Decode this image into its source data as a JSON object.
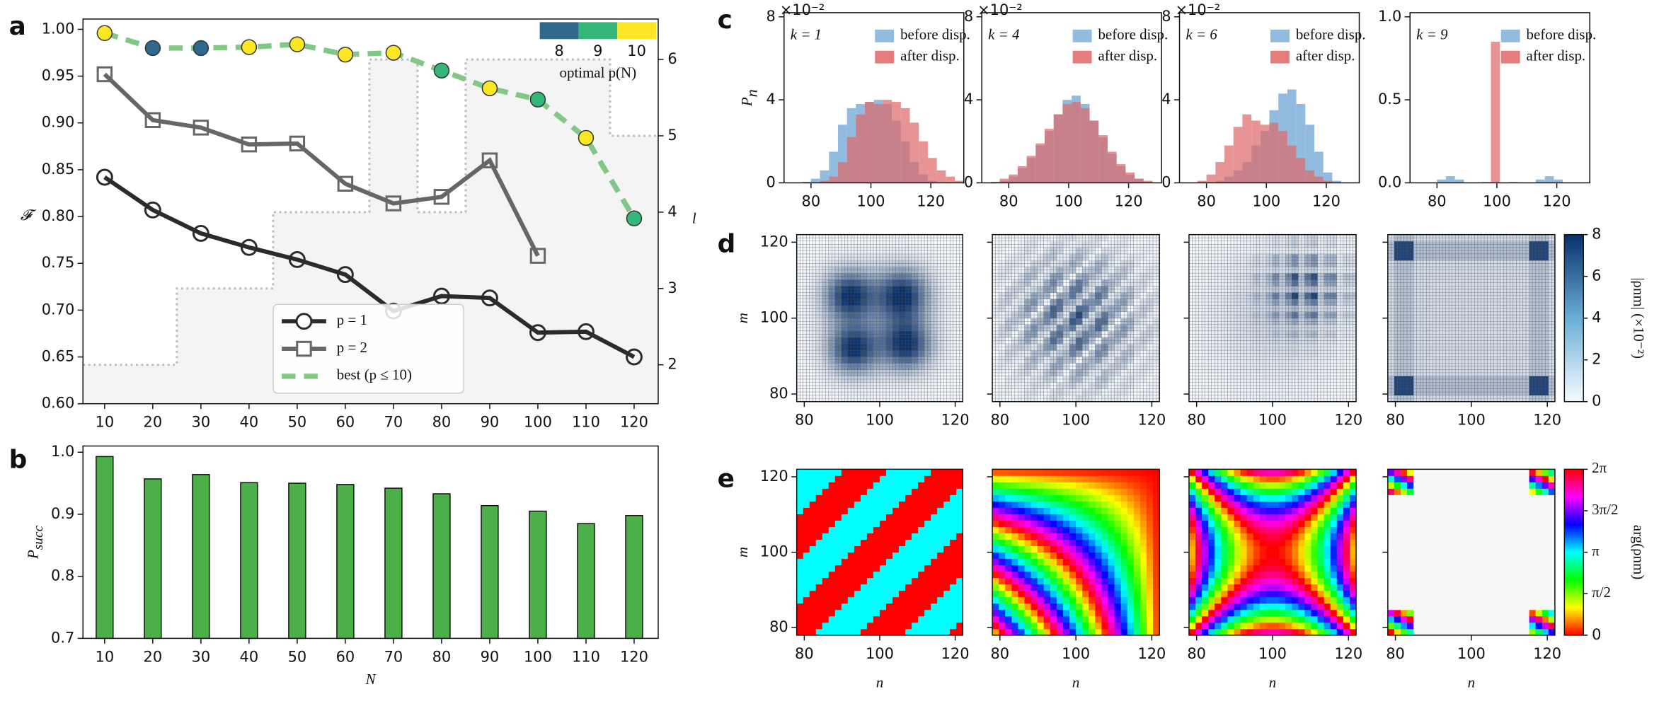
{
  "chart_data": [
    {
      "type": "line",
      "panel": "a",
      "x": [
        10,
        20,
        30,
        40,
        50,
        60,
        70,
        80,
        90,
        100,
        110,
        120
      ],
      "xlim": [
        5.5,
        125
      ],
      "xticks": [
        10,
        20,
        30,
        40,
        50,
        60,
        70,
        80,
        90,
        100,
        110,
        120
      ],
      "ylim": [
        0.6,
        1.011
      ],
      "yticks": [
        {
          "value": 0.6,
          "label": "0.60"
        },
        0.65,
        {
          "value": 0.7,
          "label": "0.70"
        },
        0.75,
        {
          "value": 0.8,
          "label": "0.80"
        },
        0.85,
        {
          "value": 0.9,
          "label": "0.90"
        },
        0.95,
        {
          "value": 1,
          "label": "1.00"
        }
      ],
      "ylabel": "𝓕",
      "y2label": "l",
      "y2lim": [
        1.49,
        6.53
      ],
      "y2ticks": [
        2,
        3,
        4,
        5,
        6
      ],
      "l_values": [
        2,
        2,
        3,
        3,
        4,
        4,
        6,
        4,
        6,
        6,
        6,
        5
      ],
      "series": [
        {
          "name": "p = 1",
          "color": "#2b2b2b",
          "marker": "circle",
          "values": [
            0.842,
            0.807,
            0.782,
            0.767,
            0.754,
            0.738,
            0.699,
            0.715,
            0.713,
            0.676,
            0.677,
            0.65
          ]
        },
        {
          "name": "p = 2",
          "color": "#666666",
          "marker": "square",
          "values": [
            0.952,
            0.903,
            0.895,
            0.877,
            0.878,
            0.835,
            0.814,
            0.821,
            0.86,
            0.758,
            null,
            null
          ]
        },
        {
          "name": "best (p ≤ 10)",
          "color": "#82c785",
          "marker": "circle",
          "dashed": true,
          "values": [
            0.996,
            0.98,
            0.98,
            0.981,
            0.984,
            0.973,
            0.975,
            0.956,
            0.937,
            0.925,
            0.884,
            0.798
          ],
          "optimal_p": [
            10,
            8,
            8,
            10,
            10,
            10,
            10,
            9,
            10,
            9,
            10,
            9
          ]
        }
      ],
      "colorbar": {
        "label": "optimal p(N)",
        "ticks": [
          8,
          9,
          10
        ],
        "colors": [
          "#31688e",
          "#35b779",
          "#fde725"
        ]
      },
      "legend": "lower center"
    },
    {
      "type": "bar",
      "panel": "b",
      "x": [
        10,
        20,
        30,
        40,
        50,
        60,
        70,
        80,
        90,
        100,
        110,
        120
      ],
      "values": [
        0.993,
        0.957,
        0.964,
        0.951,
        0.95,
        0.948,
        0.942,
        0.933,
        0.914,
        0.905,
        0.885,
        0.898
      ],
      "xlim": [
        5.5,
        125
      ],
      "xticks": [
        10,
        20,
        30,
        40,
        50,
        60,
        70,
        80,
        90,
        100,
        110,
        120
      ],
      "ylim": [
        0.7,
        1.01
      ],
      "yticks": [
        0.7,
        0.8,
        0.9,
        {
          "value": 1,
          "label": "1.0"
        }
      ],
      "xlabel": "N",
      "ylabel": "P",
      "ylabel_sub": "succ",
      "color": "#4daf4a"
    },
    {
      "type": "histogram",
      "panel": "c",
      "annotation": "k = 1",
      "ylabel": "P",
      "ylabel_sub": "n",
      "offset_label": "×10⁻²",
      "bins": [
        71,
        74,
        77,
        80,
        83,
        86,
        89,
        92,
        95,
        98,
        101,
        104,
        107,
        110,
        113,
        116,
        119,
        122,
        125,
        128,
        131
      ],
      "xlim": [
        71,
        131
      ],
      "xticks": [
        80,
        100,
        120
      ],
      "ylim": [
        0,
        8.2
      ],
      "yticks": [
        0,
        4,
        8
      ],
      "series": [
        {
          "name": "before disp.",
          "color": "#7fb0d9",
          "values": [
            0,
            0,
            0.05,
            0.2,
            0.6,
            1.5,
            2.8,
            3.6,
            3.8,
            3.9,
            4.0,
            3.8,
            3.0,
            2.0,
            1.0,
            0.4,
            0.1,
            0,
            0,
            0
          ]
        },
        {
          "name": "after disp.",
          "color": "#e06666",
          "values": [
            0,
            0,
            0,
            0,
            0.1,
            0.3,
            1.0,
            2.2,
            3.3,
            3.9,
            3.8,
            4.0,
            3.9,
            3.6,
            2.9,
            2.0,
            1.2,
            0.6,
            0.3,
            0.1
          ]
        }
      ]
    },
    {
      "type": "histogram",
      "annotation": "k = 4",
      "offset_label": "×10⁻²",
      "bins": [
        71,
        74,
        77,
        80,
        83,
        86,
        89,
        92,
        95,
        98,
        101,
        104,
        107,
        110,
        113,
        116,
        119,
        122,
        125,
        128,
        131
      ],
      "xlim": [
        71,
        131
      ],
      "xticks": [
        80,
        100,
        120
      ],
      "ylim": [
        0,
        8.2
      ],
      "yticks": [
        0,
        4,
        8
      ],
      "series": [
        {
          "name": "before disp.",
          "color": "#7fb0d9",
          "values": [
            0,
            0,
            0.1,
            0.3,
            0.7,
            1.2,
            1.8,
            2.5,
            3.3,
            4.0,
            4.2,
            3.8,
            3.0,
            2.2,
            1.4,
            0.8,
            0.4,
            0.2,
            0.05,
            0
          ]
        },
        {
          "name": "after disp.",
          "color": "#e06666",
          "values": [
            0,
            0.05,
            0.2,
            0.4,
            0.8,
            1.3,
            1.9,
            2.6,
            3.3,
            3.8,
            3.9,
            3.6,
            3.0,
            2.3,
            1.5,
            0.9,
            0.5,
            0.2,
            0.1,
            0
          ]
        }
      ]
    },
    {
      "type": "histogram",
      "annotation": "k = 6",
      "offset_label": "×10⁻²",
      "bins": [
        71,
        74,
        77,
        80,
        83,
        86,
        89,
        92,
        95,
        98,
        101,
        104,
        107,
        110,
        113,
        116,
        119,
        122,
        125,
        128,
        131
      ],
      "xlim": [
        71,
        131
      ],
      "xticks": [
        80,
        100,
        120
      ],
      "ylim": [
        0,
        8.2
      ],
      "yticks": [
        0,
        4,
        8
      ],
      "series": [
        {
          "name": "before disp.",
          "color": "#7fb0d9",
          "values": [
            0,
            0,
            0,
            0,
            0.1,
            0.3,
            0.6,
            1.0,
            1.8,
            2.5,
            3.5,
            4.3,
            4.5,
            3.8,
            2.8,
            1.5,
            0.5,
            0.1,
            0,
            0
          ]
        },
        {
          "name": "after disp.",
          "color": "#e06666",
          "values": [
            0,
            0,
            0.1,
            0.4,
            1.0,
            1.8,
            2.7,
            3.3,
            3.0,
            2.8,
            2.9,
            2.5,
            1.8,
            1.2,
            0.6,
            0.3,
            0.1,
            0,
            0,
            0
          ]
        }
      ]
    },
    {
      "type": "histogram",
      "annotation": "k = 9",
      "bins": [
        71,
        74,
        77,
        80,
        83,
        86,
        89,
        92,
        95,
        98,
        101,
        104,
        107,
        110,
        113,
        116,
        119,
        122,
        125,
        128,
        131
      ],
      "xlim": [
        71,
        131
      ],
      "xticks": [
        80,
        100,
        120
      ],
      "ylim": [
        0,
        1.025
      ],
      "yticks": [
        {
          "value": 0,
          "label": "0.0"
        },
        0.5,
        {
          "value": 1,
          "label": "1.0"
        }
      ],
      "series": [
        {
          "name": "before disp.",
          "color": "#7fb0d9",
          "values": [
            0,
            0,
            0,
            0.02,
            0.04,
            0.02,
            0,
            0,
            0.005,
            0,
            0,
            0.005,
            0,
            0,
            0.02,
            0.04,
            0.02,
            0,
            0,
            0
          ]
        },
        {
          "name": "after disp.",
          "color": "#e06666",
          "values": [
            0,
            0,
            0,
            0,
            0,
            0,
            0,
            0,
            0,
            0.85,
            0,
            0,
            0,
            0,
            0,
            0,
            0,
            0,
            0,
            0
          ]
        }
      ]
    },
    {
      "type": "heatmap",
      "panel": "d",
      "ylabel": "m",
      "xlim": [
        78,
        122
      ],
      "ylim": [
        78,
        122
      ],
      "xticks": [
        80,
        100,
        120
      ],
      "yticks": [
        80,
        100,
        120
      ]
    },
    {
      "type": "heatmap",
      "xlim": [
        78,
        122
      ],
      "ylim": [
        78,
        122
      ],
      "xticks": [
        80,
        100,
        120
      ],
      "yticks": [
        80,
        100,
        120
      ]
    },
    {
      "type": "heatmap",
      "xlim": [
        78,
        122
      ],
      "ylim": [
        78,
        122
      ],
      "xticks": [
        80,
        100,
        120
      ],
      "yticks": [
        80,
        100,
        120
      ]
    },
    {
      "type": "heatmap",
      "xlim": [
        78,
        122
      ],
      "ylim": [
        78,
        122
      ],
      "xticks": [
        80,
        100,
        120
      ],
      "yticks": [
        80,
        100,
        120
      ],
      "colorbar": {
        "label": "|ρnm| (×10⁻²)",
        "lim": [
          0,
          8
        ],
        "ticks": [
          0,
          2,
          4,
          6,
          8
        ]
      }
    },
    {
      "type": "heatmap",
      "panel": "e",
      "ylabel": "m",
      "xlabel": "n",
      "xlim": [
        78,
        122
      ],
      "ylim": [
        78,
        122
      ],
      "xticks": [
        80,
        100,
        120
      ],
      "yticks": [
        80,
        100,
        120
      ]
    },
    {
      "type": "heatmap",
      "xlabel": "n",
      "xlim": [
        78,
        122
      ],
      "ylim": [
        78,
        122
      ],
      "xticks": [
        80,
        100,
        120
      ],
      "yticks": [
        80,
        100,
        120
      ]
    },
    {
      "type": "heatmap",
      "xlabel": "n",
      "xlim": [
        78,
        122
      ],
      "ylim": [
        78,
        122
      ],
      "xticks": [
        80,
        100,
        120
      ],
      "yticks": [
        80,
        100,
        120
      ]
    },
    {
      "type": "heatmap",
      "xlabel": "n",
      "xlim": [
        78,
        122
      ],
      "ylim": [
        78,
        122
      ],
      "xticks": [
        80,
        100,
        120
      ],
      "yticks": [
        80,
        100,
        120
      ],
      "colorbar": {
        "label": "arg(ρnm)",
        "lim": [
          0,
          6.2832
        ],
        "ticks": [
          0,
          {
            "value": 1.5708,
            "label": "π/2"
          },
          {
            "value": 3.1416,
            "label": "π"
          },
          {
            "value": 4.7124,
            "label": "3π/2"
          },
          {
            "value": 6.2832,
            "label": "2π"
          }
        ]
      }
    }
  ]
}
